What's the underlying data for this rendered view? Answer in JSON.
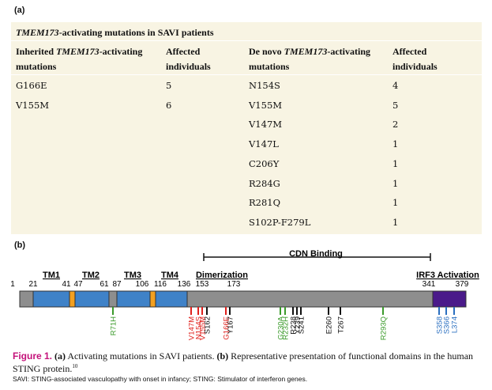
{
  "panel_a": "(a)",
  "panel_b": "(b)",
  "table": {
    "caption": {
      "italic": "TMEM173",
      "rest": "-activating mutations in SAVI patients"
    },
    "headers": [
      {
        "pre": "Inherited ",
        "italic": "TMEM173",
        "post": "-activating mutations"
      },
      {
        "pre": "Affected individuals",
        "italic": "",
        "post": ""
      },
      {
        "pre": "De novo ",
        "italic": "TMEM173",
        "post": "-activating mutations"
      },
      {
        "pre": "Affected individuals",
        "italic": "",
        "post": ""
      }
    ],
    "rows": [
      [
        "G166E",
        "5",
        "N154S",
        "4"
      ],
      [
        "V155M",
        "6",
        "V155M",
        "5"
      ],
      [
        "",
        "",
        "V147M",
        "2"
      ],
      [
        "",
        "",
        "V147L",
        "1"
      ],
      [
        "",
        "",
        "C206Y",
        "1"
      ],
      [
        "",
        "",
        "R284G",
        "1"
      ],
      [
        "",
        "",
        "R281Q",
        "1"
      ],
      [
        "",
        "",
        "S102P-F279L",
        "1"
      ]
    ]
  },
  "diagram": {
    "cdn_binding": "CDN Binding",
    "domains": [
      "TM1",
      "TM2",
      "TM3",
      "TM4",
      "Dimerization",
      "IRF3 Activation"
    ],
    "positions": [
      "1",
      "21",
      "41",
      "47",
      "61",
      "87",
      "106",
      "116",
      "136",
      "153",
      "173",
      "341",
      "379"
    ],
    "mutations": [
      {
        "label": "R71H",
        "color": "#3a9a2a"
      },
      {
        "label": "V147M",
        "color": "#e0201c"
      },
      {
        "label": "N154S",
        "color": "#e0201c"
      },
      {
        "label": "V155M",
        "color": "#e0201c"
      },
      {
        "label": "S162",
        "color": "#111111"
      },
      {
        "label": "G166E",
        "color": "#e0201c"
      },
      {
        "label": "Y167",
        "color": "#111111"
      },
      {
        "label": "G230A",
        "color": "#3a9a2a"
      },
      {
        "label": "R232H",
        "color": "#3a9a2a"
      },
      {
        "label": "R238",
        "color": "#111111"
      },
      {
        "label": "Y239",
        "color": "#111111"
      },
      {
        "label": "S241",
        "color": "#111111"
      },
      {
        "label": "E260",
        "color": "#111111"
      },
      {
        "label": "T267",
        "color": "#111111"
      },
      {
        "label": "R293Q",
        "color": "#3a9a2a"
      },
      {
        "label": "S358",
        "color": "#2a6fc0"
      },
      {
        "label": "S366",
        "color": "#2a6fc0"
      },
      {
        "label": "L374",
        "color": "#2a6fc0"
      }
    ]
  },
  "caption": {
    "figure": "Figure 1.",
    "a": "(a)",
    "a_text": " Activating mutations in SAVI patients. ",
    "b": "(b)",
    "b_text": " Representative presentation of functional domains in the human STING protein.",
    "ref": "10"
  },
  "footnote": "SAVI: STING-associated vasculopathy with onset in infancy; STING: Stimulator of interferon genes."
}
